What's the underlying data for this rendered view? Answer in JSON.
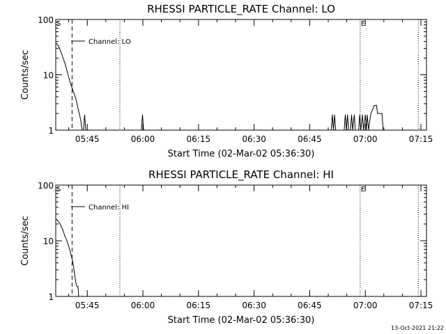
{
  "footer_timestamp": "13-Oct-2021 21:22",
  "chart_data": [
    {
      "type": "line",
      "title": "RHESSI PARTICLE_RATE Channel: LO",
      "xlabel": "Start Time (02-Mar-02 05:36:30)",
      "ylabel": "Counts/sec",
      "y_scale": "log",
      "ylim": [
        1,
        100
      ],
      "y_ticks": [
        {
          "v": 1,
          "label": "1"
        },
        {
          "v": 10,
          "label": "10"
        },
        {
          "v": 100,
          "label": "100"
        }
      ],
      "xlim_minutes": [
        336.5,
        436.5
      ],
      "x_ticks": [
        {
          "t": 345,
          "label": "05:45"
        },
        {
          "t": 360,
          "label": "06:00"
        },
        {
          "t": 375,
          "label": "06:15"
        },
        {
          "t": 390,
          "label": "06:30"
        },
        {
          "t": 405,
          "label": "06:45"
        },
        {
          "t": 420,
          "label": "07:00"
        },
        {
          "t": 435,
          "label": "07:15"
        }
      ],
      "legend": "Channel: LO",
      "markers": [
        {
          "t": 340.9,
          "label": "",
          "style": "dashed"
        },
        {
          "t": 353.8,
          "label": "",
          "style": "dotted"
        },
        {
          "t": 418.6,
          "label": "E",
          "style": "dotted"
        },
        {
          "t": 434.3,
          "label": "",
          "style": "dotted"
        }
      ],
      "start_marker": "S",
      "series": [
        {
          "points": [
            [
              336.5,
              38
            ],
            [
              337.0,
              35
            ],
            [
              337.5,
              30
            ],
            [
              338.0,
              25
            ],
            [
              338.5,
              20
            ],
            [
              339.0,
              16
            ],
            [
              339.5,
              12
            ],
            [
              340.0,
              9
            ],
            [
              340.5,
              7
            ],
            [
              341.0,
              5.5
            ],
            [
              341.5,
              4.5
            ],
            [
              342.0,
              3.5
            ],
            [
              342.5,
              2.5
            ],
            [
              343.0,
              1.8
            ],
            [
              343.3,
              1.4
            ],
            [
              343.6,
              1.0
            ],
            [
              344.0,
              1.0
            ],
            [
              344.3,
              1.9
            ],
            [
              344.6,
              1.0
            ],
            [
              359.6,
              1.0
            ],
            [
              359.9,
              1.9
            ],
            [
              360.2,
              1.0
            ],
            [
              410.8,
              1.0
            ],
            [
              411.1,
              1.9
            ],
            [
              411.4,
              1.0
            ],
            [
              411.7,
              1.9
            ],
            [
              412.0,
              1.0
            ],
            [
              414.3,
              1.0
            ],
            [
              414.6,
              1.9
            ],
            [
              414.9,
              1.0
            ],
            [
              415.2,
              1.9
            ],
            [
              415.5,
              1.0
            ],
            [
              416.0,
              1.0
            ],
            [
              416.3,
              1.9
            ],
            [
              416.6,
              1.0
            ],
            [
              417.0,
              1.9
            ],
            [
              417.3,
              1.0
            ],
            [
              418.2,
              1.0
            ],
            [
              418.5,
              1.9
            ],
            [
              418.8,
              1.0
            ],
            [
              419.2,
              1.9
            ],
            [
              419.5,
              1.0
            ],
            [
              420.0,
              1.9
            ],
            [
              420.3,
              1.0
            ],
            [
              420.5,
              1.9
            ],
            [
              420.9,
              1.0
            ],
            [
              421.2,
              1.5
            ],
            [
              421.5,
              2.0
            ],
            [
              422.0,
              2.4
            ],
            [
              422.4,
              2.8
            ],
            [
              423.0,
              2.8
            ],
            [
              423.3,
              2.0
            ],
            [
              424.5,
              2.0
            ],
            [
              424.8,
              1.0
            ]
          ]
        }
      ]
    },
    {
      "type": "line",
      "title": "RHESSI PARTICLE_RATE Channel: HI",
      "xlabel": "Start Time (02-Mar-02 05:36:30)",
      "ylabel": "Counts/sec",
      "y_scale": "log",
      "ylim": [
        1,
        100
      ],
      "y_ticks": [
        {
          "v": 1,
          "label": "1"
        },
        {
          "v": 10,
          "label": "10"
        },
        {
          "v": 100,
          "label": "100"
        }
      ],
      "xlim_minutes": [
        336.5,
        436.5
      ],
      "x_ticks": [
        {
          "t": 345,
          "label": "05:45"
        },
        {
          "t": 360,
          "label": "06:00"
        },
        {
          "t": 375,
          "label": "06:15"
        },
        {
          "t": 390,
          "label": "06:30"
        },
        {
          "t": 405,
          "label": "06:45"
        },
        {
          "t": 420,
          "label": "07:00"
        },
        {
          "t": 435,
          "label": "07:15"
        }
      ],
      "legend": "Channel: HI",
      "markers": [
        {
          "t": 340.9,
          "label": "",
          "style": "dashed"
        },
        {
          "t": 353.8,
          "label": "",
          "style": "dotted"
        },
        {
          "t": 418.6,
          "label": "E",
          "style": "dotted"
        },
        {
          "t": 434.3,
          "label": "",
          "style": "dotted"
        }
      ],
      "start_marker": "S",
      "series": [
        {
          "points": [
            [
              336.5,
              25
            ],
            [
              337.0,
              23
            ],
            [
              337.5,
              21
            ],
            [
              338.0,
              18
            ],
            [
              338.5,
              15
            ],
            [
              339.0,
              12
            ],
            [
              339.5,
              10
            ],
            [
              340.0,
              8
            ],
            [
              340.5,
              6
            ],
            [
              341.0,
              4.5
            ],
            [
              341.3,
              3.5
            ],
            [
              341.6,
              2.5
            ],
            [
              341.9,
              1.8
            ],
            [
              342.2,
              1.5
            ],
            [
              342.5,
              1.5
            ],
            [
              342.7,
              1.0
            ]
          ]
        }
      ]
    }
  ]
}
